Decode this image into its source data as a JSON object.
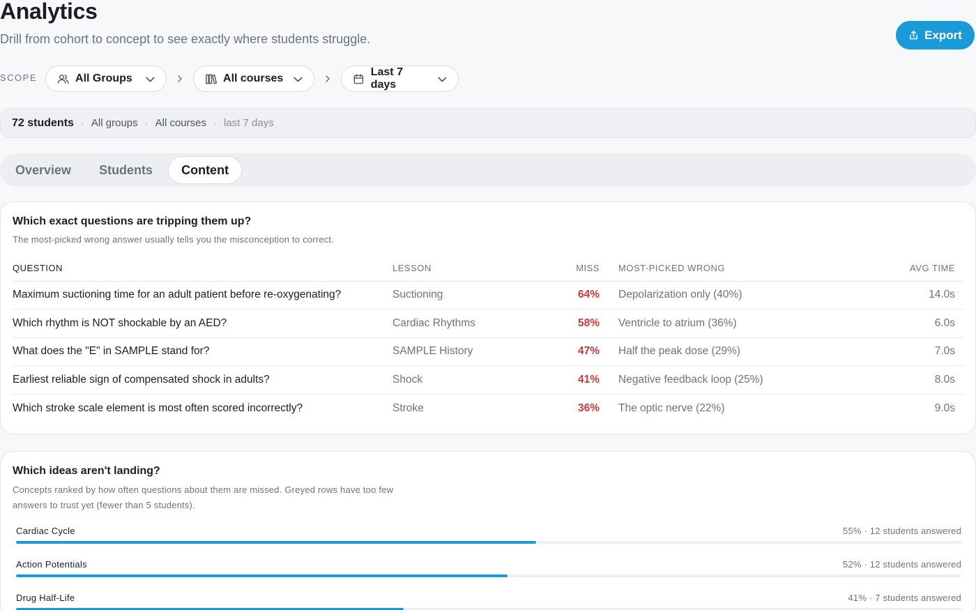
{
  "header": {
    "title": "Analytics",
    "subtitle": "Drill from cohort to concept to see exactly where students struggle.",
    "export_label": "Export"
  },
  "scope": {
    "label": "SCOPE",
    "groups": "All Groups",
    "courses": "All courses",
    "range": "Last 7 days"
  },
  "summary": {
    "count": "72 students",
    "groups": "All groups",
    "courses": "All courses",
    "range": "last 7 days"
  },
  "tabs": [
    {
      "label": "Overview",
      "active": false
    },
    {
      "label": "Students",
      "active": false
    },
    {
      "label": "Content",
      "active": true
    }
  ],
  "questions": {
    "title": "Which exact questions are tripping them up?",
    "description": "The most-picked wrong answer usually tells you the misconception to correct.",
    "columns": {
      "question": "QUESTION",
      "lesson": "LESSON",
      "miss": "MISS",
      "wrong": "MOST-PICKED WRONG",
      "time": "AVG TIME"
    },
    "rows": [
      {
        "question": "Maximum suctioning time for an adult patient before re-oxygenating?",
        "lesson": "Suctioning",
        "miss": "64%",
        "wrong": "Depolarization only (40%)",
        "time": "14.0s"
      },
      {
        "question": "Which rhythm is NOT shockable by an AED?",
        "lesson": "Cardiac Rhythms",
        "miss": "58%",
        "wrong": "Ventricle to atrium (36%)",
        "time": "6.0s"
      },
      {
        "question": "What does the \"E\" in SAMPLE stand for?",
        "lesson": "SAMPLE History",
        "miss": "47%",
        "wrong": "Half the peak dose (29%)",
        "time": "7.0s"
      },
      {
        "question": "Earliest reliable sign of compensated shock in adults?",
        "lesson": "Shock",
        "miss": "41%",
        "wrong": "Negative feedback loop (25%)",
        "time": "8.0s"
      },
      {
        "question": "Which stroke scale element is most often scored incorrectly?",
        "lesson": "Stroke",
        "miss": "36%",
        "wrong": "The optic nerve (22%)",
        "time": "9.0s"
      }
    ]
  },
  "concepts": {
    "title": "Which ideas aren't landing?",
    "description_line1": "Concepts ranked by how often questions about them are missed. Greyed rows have too few",
    "description_line2": "answers to trust yet (fewer than 5 students).",
    "items": [
      {
        "name": "Cardiac Cycle",
        "stat": "55% · 12 students answered",
        "miss_fraction": 0.55
      },
      {
        "name": "Action Potentials",
        "stat": "52% · 12 students answered",
        "miss_fraction": 0.52
      },
      {
        "name": "Drug Half-Life",
        "stat": "41% · 7 students answered",
        "miss_fraction": 0.41
      }
    ]
  },
  "colors": {
    "accent": "#1a9bd7",
    "miss": "#c93a3a"
  }
}
